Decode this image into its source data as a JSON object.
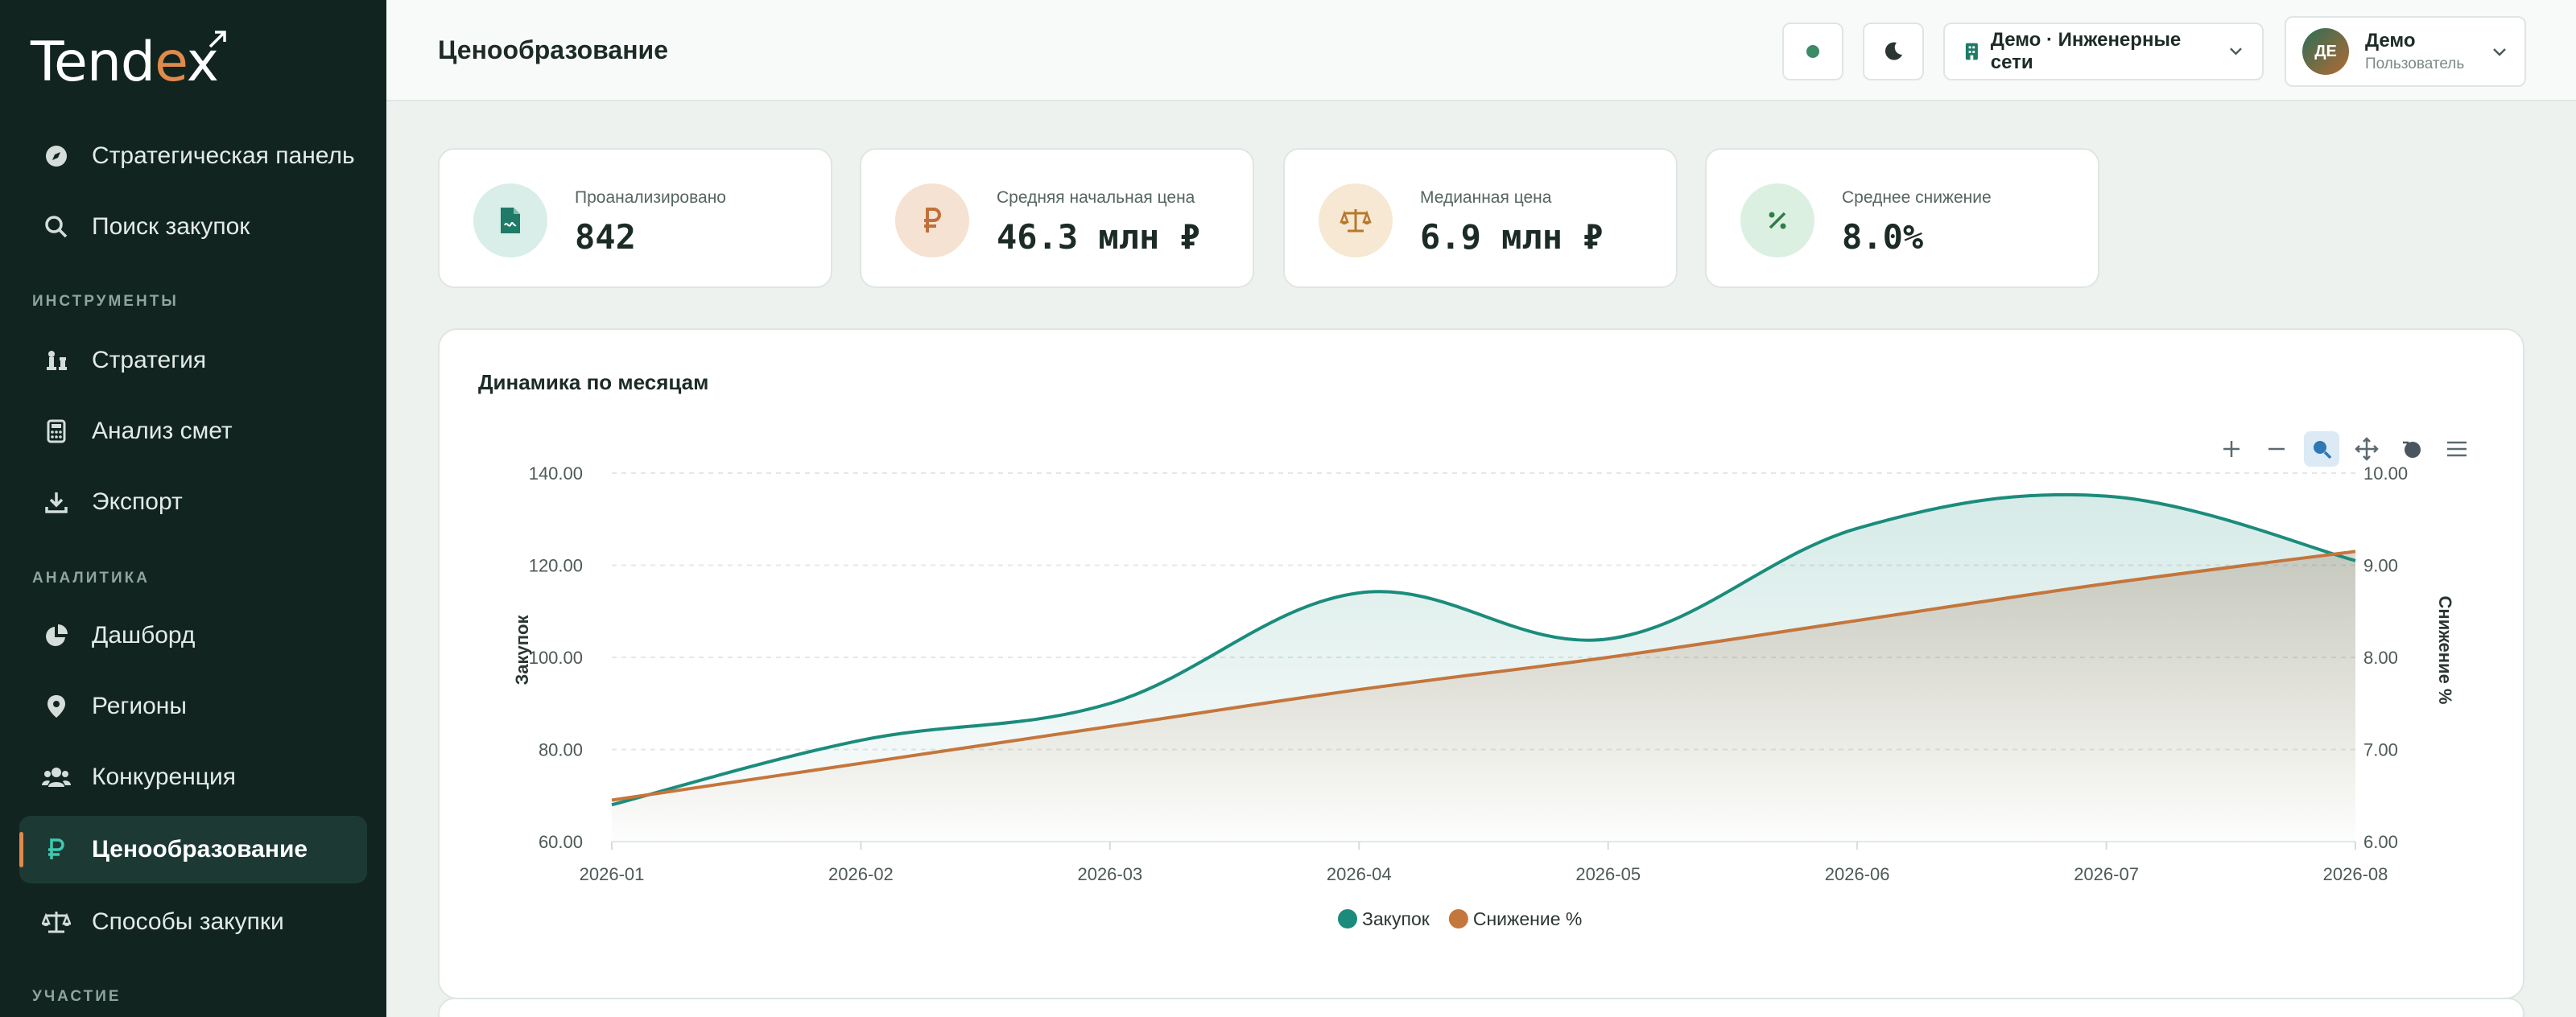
{
  "sidebar": {
    "logo_prefix": "Tend",
    "logo_x": "e",
    "logo_suffix": "x",
    "items": [
      {
        "label": "Стратегическая панель",
        "icon": "compass-icon"
      },
      {
        "label": "Поиск закупок",
        "icon": "search-icon"
      },
      {
        "label": "Стратегия",
        "icon": "chess-icon"
      },
      {
        "label": "Анализ смет",
        "icon": "calculator-icon"
      },
      {
        "label": "Экспорт",
        "icon": "download-icon"
      },
      {
        "label": "Дашборд",
        "icon": "pie-chart-icon"
      },
      {
        "label": "Регионы",
        "icon": "map-pin-icon"
      },
      {
        "label": "Конкуренция",
        "icon": "users-icon"
      },
      {
        "label": "Ценообразование",
        "icon": "ruble-icon"
      },
      {
        "label": "Способы закупки",
        "icon": "scales-icon"
      }
    ],
    "sections": {
      "tools": "ИНСТРУМЕНТЫ",
      "analytics": "АНАЛИТИКА",
      "participation": "УЧАСТИЕ"
    }
  },
  "header": {
    "title": "Ценообразование",
    "org": "Демо · Инженерные сети",
    "user": {
      "initials": "ДЕ",
      "name": "Демо",
      "role": "Пользователь"
    }
  },
  "stats": [
    {
      "label": "Проанализировано",
      "value": "842",
      "icon": "document-icon",
      "bg": "#d9eee8",
      "fg": "#1f7a67"
    },
    {
      "label": "Средняя начальная цена",
      "value": "46.3 млн ₽",
      "icon": "ruble-icon",
      "bg": "#f6e2d2",
      "fg": "#c0703a"
    },
    {
      "label": "Медианная цена",
      "value": "6.9 млн ₽",
      "icon": "scales-icon",
      "bg": "#f7e8d3",
      "fg": "#b8782c"
    },
    {
      "label": "Среднее снижение",
      "value": "8.0%",
      "icon": "percent-icon",
      "bg": "#dcf0e2",
      "fg": "#2f7d4a"
    }
  ],
  "chart": {
    "title": "Динамика по месяцам",
    "toolbar": [
      "zoom-in-icon",
      "zoom-out-icon",
      "zoom-select-icon",
      "pan-icon",
      "reset-icon",
      "menu-icon"
    ]
  },
  "chart_data": {
    "type": "area",
    "x": [
      "2026-01",
      "2026-02",
      "2026-03",
      "2026-04",
      "2026-05",
      "2026-06",
      "2026-07",
      "2026-08"
    ],
    "series": [
      {
        "name": "Закупок",
        "axis": "left",
        "color": "#1b8c7c",
        "values": [
          68,
          82,
          90,
          114,
          104,
          128,
          135,
          121
        ]
      },
      {
        "name": "Снижение %",
        "axis": "right",
        "color": "#c4763c",
        "values": [
          6.45,
          6.85,
          7.25,
          7.65,
          8.0,
          8.4,
          8.8,
          9.15
        ]
      }
    ],
    "ylabel": "Закупок",
    "y2label": "Снижение %",
    "ylim": [
      60,
      140
    ],
    "y2lim": [
      6,
      10
    ],
    "yticks": [
      "60.00",
      "80.00",
      "100.00",
      "120.00",
      "140.00"
    ],
    "y2ticks": [
      "6.00",
      "7.00",
      "8.00",
      "9.00",
      "10.00"
    ],
    "grid": true,
    "legend": "bottom-center"
  }
}
